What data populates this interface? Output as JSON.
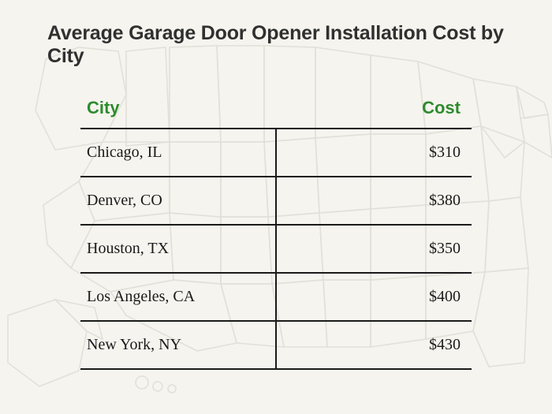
{
  "title": "Average Garage Door Opener Installation Cost by City",
  "title_fontsize": 25,
  "title_color": "#303030",
  "background_color": "#f5f4ee",
  "map_outline_color": "#c9c8c0",
  "table": {
    "type": "table",
    "header_color": "#2e8b2e",
    "header_fontsize": 22,
    "cell_fontsize": 20,
    "cell_color": "#1a1a1a",
    "rule_color": "#1a1a1a",
    "rule_width": 2,
    "columns": [
      "City",
      "Cost"
    ],
    "rows": [
      [
        "Chicago, IL",
        "$310"
      ],
      [
        "Denver, CO",
        "$380"
      ],
      [
        "Houston, TX",
        "$350"
      ],
      [
        "Los Angeles, CA",
        "$400"
      ],
      [
        "New York, NY",
        "$430"
      ]
    ],
    "column_align": [
      "left",
      "right"
    ]
  }
}
